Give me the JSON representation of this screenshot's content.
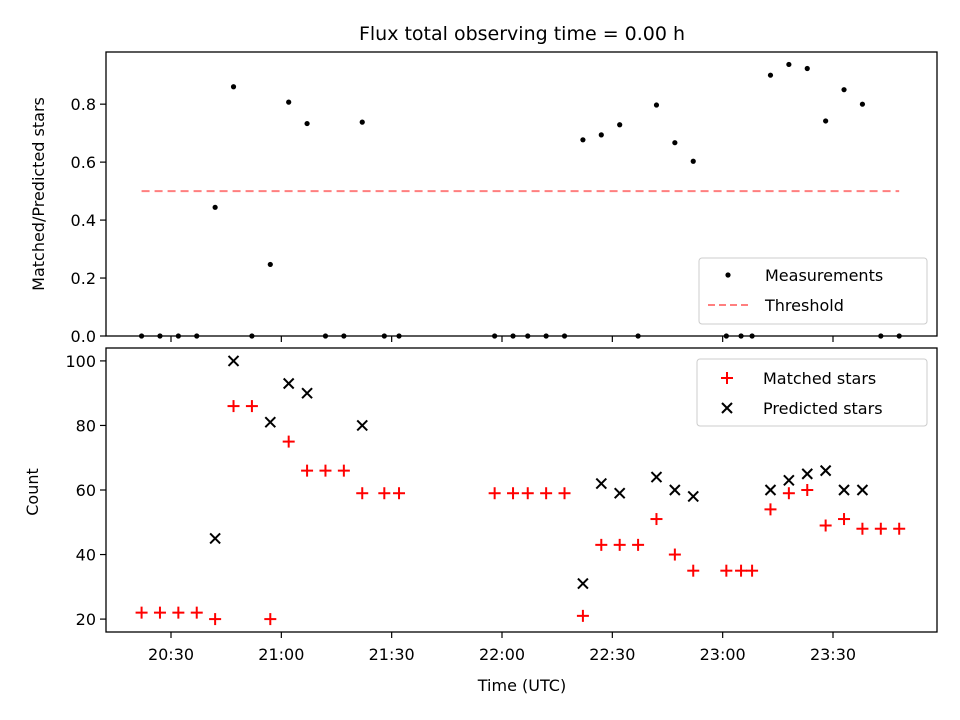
{
  "chart_data": [
    {
      "type": "scatter",
      "title": "Flux total observing time = 0.00 h",
      "xlabel": "",
      "ylabel": "Matched/Predicted stars",
      "ylim": [
        0,
        0.98
      ],
      "yticks": [
        0.0,
        0.2,
        0.4,
        0.6,
        0.8
      ],
      "ytick_labels": [
        "0.0",
        "0.2",
        "0.4",
        "0.6",
        "0.8"
      ],
      "legend_position": "lower-right",
      "grid": false,
      "series": [
        {
          "name": "Measurements",
          "marker": "dot",
          "color": "#000000",
          "points": [
            [
              "20:22",
              0.0
            ],
            [
              "20:27",
              0.0
            ],
            [
              "20:32",
              0.0
            ],
            [
              "20:37",
              0.0
            ],
            [
              "20:42",
              0.444
            ],
            [
              "20:47",
              0.86
            ],
            [
              "20:52",
              0.0
            ],
            [
              "20:57",
              0.247
            ],
            [
              "21:02",
              0.807
            ],
            [
              "21:07",
              0.733
            ],
            [
              "21:12",
              0.0
            ],
            [
              "21:17",
              0.0
            ],
            [
              "21:22",
              0.738
            ],
            [
              "21:28",
              0.0
            ],
            [
              "21:32",
              0.0
            ],
            [
              "21:58",
              0.0
            ],
            [
              "22:03",
              0.0
            ],
            [
              "22:07",
              0.0
            ],
            [
              "22:12",
              0.0
            ],
            [
              "22:17",
              0.0
            ],
            [
              "22:22",
              0.677
            ],
            [
              "22:27",
              0.694
            ],
            [
              "22:32",
              0.729
            ],
            [
              "22:37",
              0.0
            ],
            [
              "22:42",
              0.797
            ],
            [
              "22:47",
              0.667
            ],
            [
              "22:52",
              0.603
            ],
            [
              "23:01",
              0.0
            ],
            [
              "23:05",
              0.0
            ],
            [
              "23:08",
              0.0
            ],
            [
              "23:13",
              0.9
            ],
            [
              "23:18",
              0.937
            ],
            [
              "23:23",
              0.923
            ],
            [
              "23:28",
              0.742
            ],
            [
              "23:33",
              0.85
            ],
            [
              "23:38",
              0.8
            ],
            [
              "23:43",
              0.0
            ],
            [
              "23:48",
              0.0
            ]
          ]
        },
        {
          "name": "Threshold",
          "type": "line",
          "style": "dashed",
          "color": "#ff7f7f",
          "points": [
            [
              "20:22",
              0.5
            ],
            [
              "23:48",
              0.5
            ]
          ]
        }
      ]
    },
    {
      "type": "scatter",
      "title": "",
      "xlabel": "Time (UTC)",
      "ylabel": "Count",
      "ylim": [
        16,
        104
      ],
      "yticks": [
        20,
        40,
        60,
        80,
        100
      ],
      "ytick_labels": [
        "20",
        "40",
        "60",
        "80",
        "100"
      ],
      "xticks": [
        "20:30",
        "21:00",
        "21:30",
        "22:00",
        "22:30",
        "23:00",
        "23:30"
      ],
      "xtick_labels": [
        "20:30",
        "21:00",
        "21:30",
        "22:00",
        "22:30",
        "23:00",
        "23:30"
      ],
      "legend_position": "upper-right",
      "grid": false,
      "series": [
        {
          "name": "Matched stars",
          "marker": "plus",
          "color": "#ff0000",
          "points": [
            [
              "20:22",
              22
            ],
            [
              "20:27",
              22
            ],
            [
              "20:32",
              22
            ],
            [
              "20:37",
              22
            ],
            [
              "20:42",
              20
            ],
            [
              "20:47",
              86
            ],
            [
              "20:52",
              86
            ],
            [
              "20:57",
              20
            ],
            [
              "21:02",
              75
            ],
            [
              "21:07",
              66
            ],
            [
              "21:12",
              66
            ],
            [
              "21:17",
              66
            ],
            [
              "21:22",
              59
            ],
            [
              "21:28",
              59
            ],
            [
              "21:32",
              59
            ],
            [
              "21:58",
              59
            ],
            [
              "22:03",
              59
            ],
            [
              "22:07",
              59
            ],
            [
              "22:12",
              59
            ],
            [
              "22:17",
              59
            ],
            [
              "22:22",
              21
            ],
            [
              "22:27",
              43
            ],
            [
              "22:32",
              43
            ],
            [
              "22:37",
              43
            ],
            [
              "22:42",
              51
            ],
            [
              "22:47",
              40
            ],
            [
              "22:52",
              35
            ],
            [
              "23:01",
              35
            ],
            [
              "23:05",
              35
            ],
            [
              "23:08",
              35
            ],
            [
              "23:13",
              54
            ],
            [
              "23:18",
              59
            ],
            [
              "23:23",
              60
            ],
            [
              "23:28",
              49
            ],
            [
              "23:33",
              51
            ],
            [
              "23:38",
              48
            ],
            [
              "23:43",
              48
            ],
            [
              "23:48",
              48
            ]
          ]
        },
        {
          "name": "Predicted stars",
          "marker": "x",
          "color": "#000000",
          "points": [
            [
              "20:42",
              45
            ],
            [
              "20:47",
              100
            ],
            [
              "20:57",
              81
            ],
            [
              "21:02",
              93
            ],
            [
              "21:07",
              90
            ],
            [
              "21:22",
              80
            ],
            [
              "22:22",
              31
            ],
            [
              "22:27",
              62
            ],
            [
              "22:32",
              59
            ],
            [
              "22:42",
              64
            ],
            [
              "22:47",
              60
            ],
            [
              "22:52",
              58
            ],
            [
              "23:13",
              60
            ],
            [
              "23:18",
              63
            ],
            [
              "23:23",
              65
            ],
            [
              "23:28",
              66
            ],
            [
              "23:33",
              60
            ],
            [
              "23:38",
              60
            ]
          ]
        }
      ]
    }
  ]
}
